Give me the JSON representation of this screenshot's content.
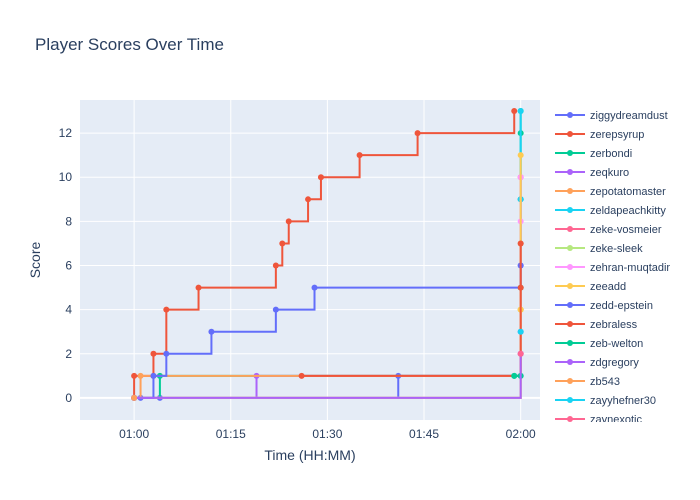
{
  "chart_data": {
    "type": "line",
    "title": "Player Scores Over Time",
    "xlabel": "Time (HH:MM)",
    "ylabel": "Score",
    "x_ticks": [
      "01:00",
      "01:15",
      "01:30",
      "01:45",
      "02:00"
    ],
    "y_ticks": [
      "0",
      "2",
      "4",
      "6",
      "8",
      "10",
      "12"
    ],
    "xlim_minutes_after_0100": [
      -8.4,
      63.0
    ],
    "ylim": [
      -1.0,
      13.5
    ],
    "grid": true,
    "legend_position": "right",
    "step_shape": "hv",
    "series": [
      {
        "name": "ziggydreamdust",
        "color": "#636efa",
        "points": [
          [
            "01:00",
            0
          ],
          [
            "01:01",
            0
          ],
          [
            "01:04",
            0
          ],
          [
            "01:41",
            1
          ],
          [
            "02:00",
            3
          ],
          [
            "02:00",
            6
          ],
          [
            "02:00",
            9
          ]
        ]
      },
      {
        "name": "zerepsyrup",
        "color": "#EF553B",
        "points": [
          [
            "01:00",
            0
          ],
          [
            "01:00",
            1
          ],
          [
            "01:03",
            1
          ],
          [
            "01:03",
            2
          ],
          [
            "01:05",
            4
          ],
          [
            "01:10",
            5
          ],
          [
            "01:22",
            6
          ],
          [
            "01:23",
            7
          ],
          [
            "01:24",
            8
          ],
          [
            "01:27",
            9
          ],
          [
            "01:29",
            10
          ],
          [
            "01:35",
            11
          ],
          [
            "01:44",
            12
          ],
          [
            "01:59",
            13
          ]
        ]
      },
      {
        "name": "zerbondi",
        "color": "#00cc96",
        "points": [
          [
            "01:00",
            0
          ],
          [
            "01:04",
            1
          ],
          [
            "01:59",
            1
          ],
          [
            "02:00",
            5
          ],
          [
            "02:00",
            9
          ],
          [
            "02:00",
            12
          ],
          [
            "02:00",
            13
          ]
        ]
      },
      {
        "name": "zeqkuro",
        "color": "#ab63fa",
        "points": [
          [
            "01:00",
            0
          ],
          [
            "01:19",
            1
          ],
          [
            "02:00",
            1
          ]
        ]
      },
      {
        "name": "zepotatomaster",
        "color": "#FFA15A",
        "points": [
          [
            "01:00",
            0
          ],
          [
            "01:00",
            0
          ],
          [
            "01:01",
            1
          ],
          [
            "02:00",
            4
          ]
        ]
      },
      {
        "name": "zeldapeachkitty",
        "color": "#19d3f3",
        "points": [
          [
            "01:00",
            0
          ],
          [
            "02:00",
            9
          ],
          [
            "02:00",
            13
          ]
        ]
      },
      {
        "name": "zeke-vosmeier",
        "color": "#FF6692",
        "points": [
          [
            "01:00",
            0
          ],
          [
            "02:00",
            2
          ],
          [
            "02:00",
            7
          ],
          [
            "02:00",
            10
          ]
        ]
      },
      {
        "name": "zeke-sleek",
        "color": "#B6E880",
        "points": [
          [
            "01:00",
            0
          ],
          [
            "02:00",
            4
          ],
          [
            "02:00",
            7
          ]
        ]
      },
      {
        "name": "zehran-muqtadir",
        "color": "#FF97FF",
        "points": [
          [
            "01:00",
            0
          ],
          [
            "02:00",
            8
          ],
          [
            "02:00",
            10
          ]
        ]
      },
      {
        "name": "zeeadd",
        "color": "#FECB52",
        "points": [
          [
            "01:00",
            0
          ],
          [
            "02:00",
            4
          ],
          [
            "02:00",
            11
          ]
        ]
      },
      {
        "name": "zedd-epstein",
        "color": "#636efa",
        "points": [
          [
            "01:00",
            0
          ],
          [
            "01:03",
            1
          ],
          [
            "01:05",
            2
          ],
          [
            "01:12",
            3
          ],
          [
            "01:22",
            4
          ],
          [
            "01:28",
            5
          ],
          [
            "02:00",
            6
          ]
        ]
      },
      {
        "name": "zebraless",
        "color": "#EF553B",
        "points": [
          [
            "01:26",
            1
          ],
          [
            "02:00",
            5
          ],
          [
            "02:00",
            7
          ]
        ]
      },
      {
        "name": "zeb-welton",
        "color": "#00cc96",
        "points": [
          [
            "01:59",
            1
          ],
          [
            "02:00",
            1
          ]
        ]
      },
      {
        "name": "zdgregory",
        "color": "#ab63fa",
        "points": [
          [
            "01:00",
            0
          ],
          [
            "02:00",
            2
          ]
        ]
      },
      {
        "name": "zb543",
        "color": "#FFA15A",
        "points": [
          [
            "01:00",
            0
          ]
        ]
      },
      {
        "name": "zayyhefner30",
        "color": "#19d3f3",
        "points": [
          [
            "02:00",
            3
          ]
        ]
      },
      {
        "name": "zaynexotic",
        "color": "#FF6692",
        "points": [
          [
            "02:00",
            2
          ]
        ]
      }
    ]
  }
}
